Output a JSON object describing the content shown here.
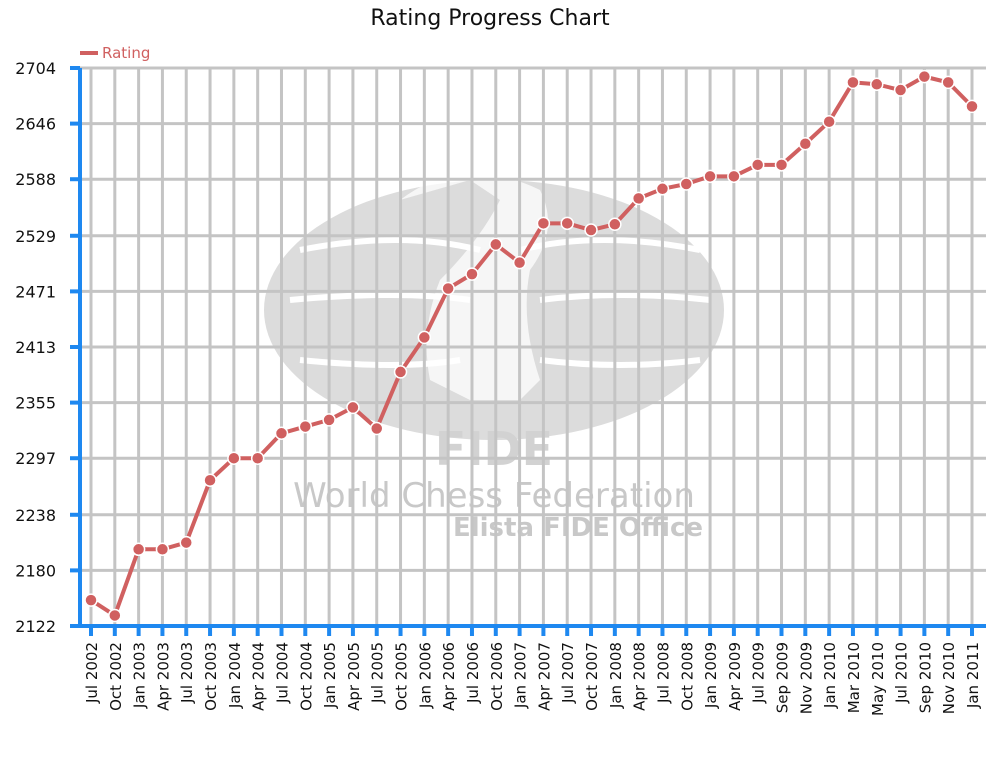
{
  "chart_data": {
    "type": "line",
    "title": "Rating Progress Chart",
    "xlabel": "",
    "ylabel": "",
    "ylim": [
      2122,
      2704
    ],
    "y_ticks": [
      2122,
      2180,
      2238,
      2297,
      2355,
      2413,
      2471,
      2529,
      2588,
      2646,
      2704
    ],
    "grid": true,
    "legend_position": "top-left",
    "categories": [
      "Jul 2002",
      "Oct 2002",
      "Jan 2003",
      "Apr 2003",
      "Jul 2003",
      "Oct 2003",
      "Jan 2004",
      "Apr 2004",
      "Jul 2004",
      "Oct 2004",
      "Jan 2005",
      "Apr 2005",
      "Jul 2005",
      "Oct 2005",
      "Jan 2006",
      "Apr 2006",
      "Jul 2006",
      "Oct 2006",
      "Jan 2007",
      "Apr 2007",
      "Jul 2007",
      "Oct 2007",
      "Jan 2008",
      "Apr 2008",
      "Jul 2008",
      "Oct 2008",
      "Jan 2009",
      "Apr 2009",
      "Jul 2009",
      "Sep 2009",
      "Nov 2009",
      "Jan 2010",
      "Mar 2010",
      "May 2010",
      "Jul 2010",
      "Sep 2010",
      "Nov 2010",
      "Jan 2011"
    ],
    "series": [
      {
        "name": "Rating",
        "color": "#d06060",
        "values": [
          2149,
          2133,
          2202,
          2202,
          2209,
          2274,
          2297,
          2297,
          2323,
          2330,
          2337,
          2350,
          2328,
          2387,
          2423,
          2474,
          2489,
          2520,
          2501,
          2542,
          2542,
          2535,
          2541,
          2568,
          2578,
          2583,
          2591,
          2591,
          2603,
          2603,
          2625,
          2648,
          2689,
          2687,
          2681,
          2695,
          2689,
          2664
        ]
      }
    ],
    "watermark": {
      "logo_text": "FIDE",
      "line1": "World Chess Federation",
      "line2": "Elista FIDE Office"
    }
  },
  "colors": {
    "axis": "#1e88f0",
    "grid": "#c4c4c4",
    "line": "#d06060"
  }
}
